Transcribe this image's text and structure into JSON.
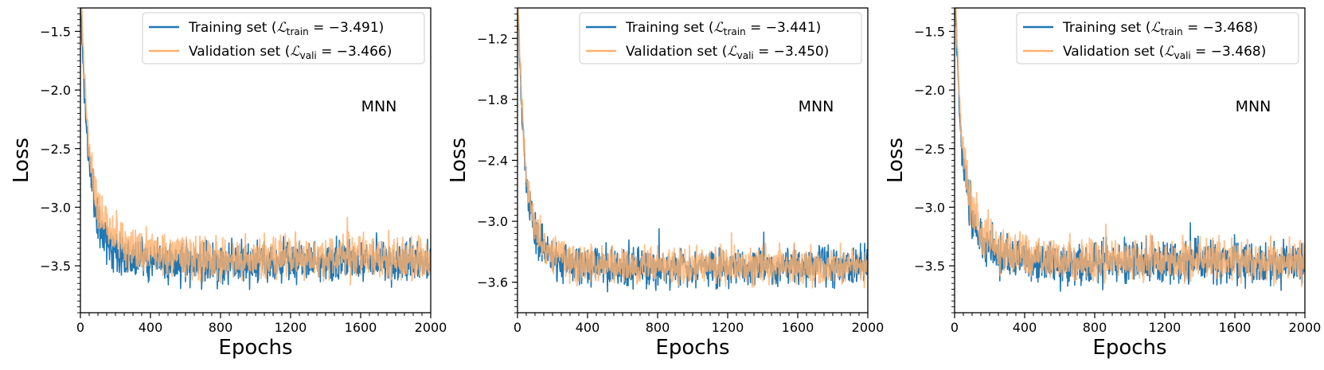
{
  "colors": {
    "training": "#1f77b4",
    "validation": "#ffb16e"
  },
  "chart_data": [
    {
      "type": "line",
      "xlabel": "Epochs",
      "ylabel": "Loss",
      "annotation": "MNN",
      "xlim": [
        0,
        2000
      ],
      "ylim": [
        -3.9,
        -1.3
      ],
      "xticks": [
        0,
        400,
        800,
        1200,
        1600,
        2000
      ],
      "yticks": [
        -3.5,
        -3.0,
        -2.5,
        -2.0,
        -1.5
      ],
      "ytick_labels": [
        "−3.5",
        "−3.0",
        "−2.5",
        "−2.0",
        "−1.5"
      ],
      "series": [
        {
          "name": "Training set",
          "subscript": "train",
          "final_loss": "−3.491",
          "x": [
            0,
            10,
            20,
            30,
            40,
            60,
            80,
            100,
            130,
            160,
            200,
            250,
            300,
            400,
            500,
            600,
            800,
            1000,
            1200,
            1400,
            1600,
            1800,
            2000
          ],
          "y": [
            -1.2,
            -1.6,
            -1.95,
            -2.2,
            -2.45,
            -2.75,
            -2.95,
            -3.1,
            -3.22,
            -3.3,
            -3.36,
            -3.4,
            -3.43,
            -3.46,
            -3.47,
            -3.48,
            -3.48,
            -3.47,
            -3.46,
            -3.46,
            -3.46,
            -3.47,
            -3.49
          ]
        },
        {
          "name": "Validation set",
          "subscript": "vali",
          "final_loss": "−3.466",
          "x": [
            0,
            10,
            20,
            30,
            40,
            60,
            80,
            100,
            130,
            160,
            200,
            250,
            300,
            400,
            500,
            600,
            800,
            1000,
            1200,
            1400,
            1600,
            1800,
            2000
          ],
          "y": [
            -1.0,
            -1.4,
            -1.8,
            -2.05,
            -2.3,
            -2.6,
            -2.8,
            -2.95,
            -3.08,
            -3.18,
            -3.26,
            -3.31,
            -3.35,
            -3.39,
            -3.41,
            -3.43,
            -3.44,
            -3.44,
            -3.43,
            -3.43,
            -3.44,
            -3.45,
            -3.47
          ]
        }
      ]
    },
    {
      "type": "line",
      "xlabel": "Epochs",
      "ylabel": "Loss",
      "annotation": "MNN",
      "xlim": [
        0,
        2000
      ],
      "ylim": [
        -3.9,
        -0.9
      ],
      "xticks": [
        0,
        400,
        800,
        1200,
        1600,
        2000
      ],
      "yticks": [
        -3.6,
        -3.0,
        -2.4,
        -1.8,
        -1.2
      ],
      "ytick_labels": [
        "−3.6",
        "−3.0",
        "−2.4",
        "−1.8",
        "−1.2"
      ],
      "series": [
        {
          "name": "Training set",
          "subscript": "train",
          "final_loss": "−3.441",
          "x": [
            0,
            10,
            20,
            30,
            40,
            60,
            80,
            100,
            130,
            160,
            200,
            250,
            300,
            400,
            500,
            600,
            800,
            1000,
            1200,
            1400,
            1600,
            1800,
            2000
          ],
          "y": [
            -0.8,
            -1.3,
            -1.75,
            -2.1,
            -2.4,
            -2.75,
            -2.95,
            -3.1,
            -3.22,
            -3.3,
            -3.36,
            -3.4,
            -3.42,
            -3.45,
            -3.46,
            -3.47,
            -3.47,
            -3.46,
            -3.46,
            -3.45,
            -3.45,
            -3.45,
            -3.44
          ]
        },
        {
          "name": "Validation set",
          "subscript": "vali",
          "final_loss": "−3.450",
          "x": [
            0,
            10,
            20,
            30,
            40,
            60,
            80,
            100,
            130,
            160,
            200,
            250,
            300,
            400,
            500,
            600,
            800,
            1000,
            1200,
            1400,
            1600,
            1800,
            2000
          ],
          "y": [
            -0.7,
            -1.2,
            -1.65,
            -2.0,
            -2.3,
            -2.65,
            -2.88,
            -3.03,
            -3.16,
            -3.25,
            -3.31,
            -3.36,
            -3.39,
            -3.42,
            -3.43,
            -3.44,
            -3.44,
            -3.44,
            -3.44,
            -3.44,
            -3.44,
            -3.45,
            -3.45
          ]
        }
      ]
    },
    {
      "type": "line",
      "xlabel": "Epochs",
      "ylabel": "Loss",
      "annotation": "MNN",
      "xlim": [
        0,
        2000
      ],
      "ylim": [
        -3.9,
        -1.3
      ],
      "xticks": [
        0,
        400,
        800,
        1200,
        1600,
        2000
      ],
      "yticks": [
        -3.5,
        -3.0,
        -2.5,
        -2.0,
        -1.5
      ],
      "ytick_labels": [
        "−3.5",
        "−3.0",
        "−2.5",
        "−2.0",
        "−1.5"
      ],
      "series": [
        {
          "name": "Training set",
          "subscript": "train",
          "final_loss": "−3.468",
          "x": [
            0,
            10,
            20,
            30,
            40,
            60,
            80,
            100,
            130,
            160,
            200,
            250,
            300,
            400,
            500,
            600,
            800,
            1000,
            1200,
            1400,
            1600,
            1800,
            2000
          ],
          "y": [
            -1.1,
            -1.5,
            -1.9,
            -2.2,
            -2.45,
            -2.75,
            -2.95,
            -3.1,
            -3.22,
            -3.3,
            -3.36,
            -3.4,
            -3.43,
            -3.46,
            -3.47,
            -3.48,
            -3.48,
            -3.47,
            -3.47,
            -3.47,
            -3.47,
            -3.47,
            -3.47
          ]
        },
        {
          "name": "Validation set",
          "subscript": "vali",
          "final_loss": "−3.468",
          "x": [
            0,
            10,
            20,
            30,
            40,
            60,
            80,
            100,
            130,
            160,
            200,
            250,
            300,
            400,
            500,
            600,
            800,
            1000,
            1200,
            1400,
            1600,
            1800,
            2000
          ],
          "y": [
            -1.0,
            -1.4,
            -1.8,
            -2.1,
            -2.35,
            -2.65,
            -2.87,
            -3.02,
            -3.15,
            -3.24,
            -3.3,
            -3.35,
            -3.38,
            -3.41,
            -3.43,
            -3.44,
            -3.45,
            -3.45,
            -3.45,
            -3.45,
            -3.46,
            -3.46,
            -3.47
          ]
        }
      ]
    }
  ]
}
